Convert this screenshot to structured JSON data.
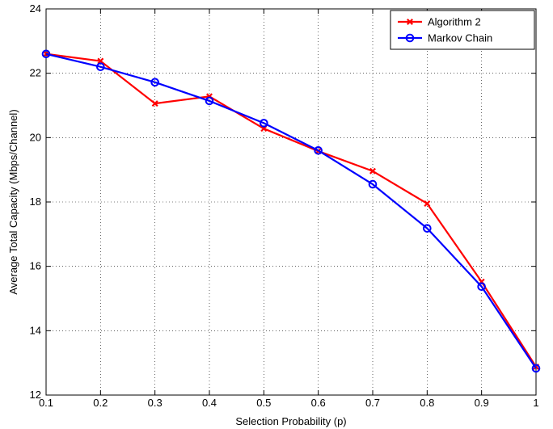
{
  "chart_data": {
    "type": "line",
    "title": "",
    "xlabel": "Selection Probability (p)",
    "ylabel": "Average Total Capacity (Mbps/Channel)",
    "x": [
      0.1,
      0.2,
      0.3,
      0.4,
      0.5,
      0.6,
      0.7,
      0.8,
      0.9,
      1
    ],
    "xlim": [
      0.1,
      1
    ],
    "ylim": [
      12,
      24
    ],
    "xticks": [
      "0.1",
      "0.2",
      "0.3",
      "0.4",
      "0.5",
      "0.6",
      "0.7",
      "0.8",
      "0.9",
      "1"
    ],
    "yticks": [
      "12",
      "14",
      "16",
      "18",
      "20",
      "22",
      "24"
    ],
    "grid": true,
    "legend_position": "top-right",
    "series": [
      {
        "name": "Algorithm 2",
        "color": "#ff0000",
        "marker": "x",
        "values": [
          22.6,
          22.38,
          21.06,
          21.28,
          20.28,
          19.58,
          18.96,
          17.95,
          15.52,
          12.88
        ]
      },
      {
        "name": "Markov Chain",
        "color": "#0000ff",
        "marker": "o",
        "values": [
          22.6,
          22.2,
          21.72,
          21.14,
          20.45,
          19.6,
          18.55,
          17.18,
          15.37,
          12.83
        ]
      }
    ]
  }
}
